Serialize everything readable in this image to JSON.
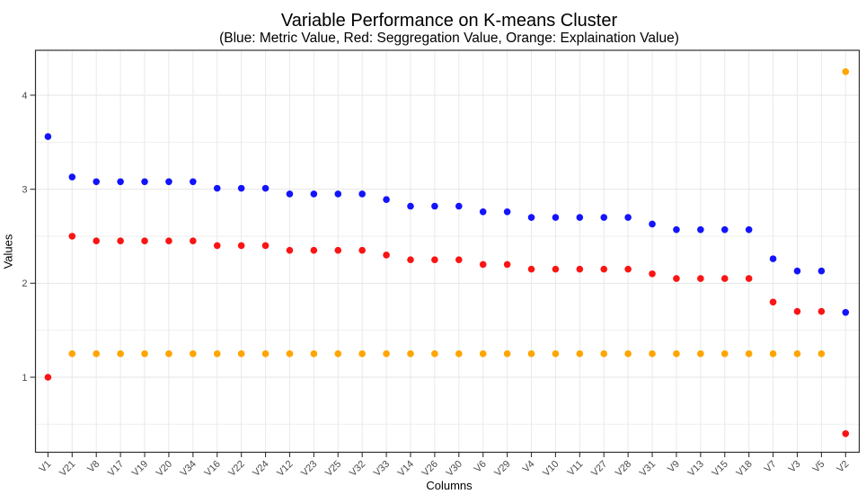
{
  "title": "Variable Performance on K-means Cluster",
  "subtitle": "(Blue: Metric Value, Red: Seggregation Value, Orange: Explaination Value)",
  "chart_data": {
    "type": "scatter",
    "title": "Variable Performance on K-means Cluster",
    "subtitle": "(Blue: Metric Value, Red: Seggregation Value, Orange: Explaination Value)",
    "xlabel": "Columns",
    "ylabel": "Values",
    "categories": [
      "V1",
      "V21",
      "V8",
      "V17",
      "V19",
      "V20",
      "V34",
      "V16",
      "V22",
      "V24",
      "V12",
      "V23",
      "V25",
      "V32",
      "V33",
      "V14",
      "V26",
      "V30",
      "V6",
      "V29",
      "V4",
      "V10",
      "V11",
      "V27",
      "V28",
      "V31",
      "V9",
      "V13",
      "V15",
      "V18",
      "V7",
      "V3",
      "V5",
      "V2"
    ],
    "series": [
      {
        "name": "Metric Value",
        "color": "#1414fa",
        "values": [
          3.56,
          3.13,
          3.08,
          3.08,
          3.08,
          3.08,
          3.08,
          3.01,
          3.01,
          3.01,
          2.95,
          2.95,
          2.95,
          2.95,
          2.89,
          2.82,
          2.82,
          2.82,
          2.76,
          2.76,
          2.7,
          2.7,
          2.7,
          2.7,
          2.7,
          2.63,
          2.57,
          2.57,
          2.57,
          2.57,
          2.26,
          2.13,
          2.13,
          1.69
        ]
      },
      {
        "name": "Seggregation Value",
        "color": "#fa1414",
        "values": [
          1.0,
          2.5,
          2.45,
          2.45,
          2.45,
          2.45,
          2.45,
          2.4,
          2.4,
          2.4,
          2.35,
          2.35,
          2.35,
          2.35,
          2.3,
          2.25,
          2.25,
          2.25,
          2.2,
          2.2,
          2.15,
          2.15,
          2.15,
          2.15,
          2.15,
          2.1,
          2.05,
          2.05,
          2.05,
          2.05,
          1.8,
          1.7,
          1.7,
          0.4
        ]
      },
      {
        "name": "Explaination Value",
        "color": "#ffa500",
        "values": [
          null,
          1.25,
          1.25,
          1.25,
          1.25,
          1.25,
          1.25,
          1.25,
          1.25,
          1.25,
          1.25,
          1.25,
          1.25,
          1.25,
          1.25,
          1.25,
          1.25,
          1.25,
          1.25,
          1.25,
          1.25,
          1.25,
          1.25,
          1.25,
          1.25,
          1.25,
          1.25,
          1.25,
          1.25,
          1.25,
          1.25,
          1.25,
          1.25,
          4.25
        ]
      }
    ],
    "yticks": [
      1,
      2,
      3,
      4
    ],
    "y_minor_gridlines": [
      0.5,
      1.5,
      2.5,
      3.5
    ],
    "ylim": [
      0.2,
      4.48
    ],
    "grid": true,
    "legend": "none (series identified in subtitle)"
  },
  "style": {
    "panel_border": "#2e2e2e",
    "grid_major": "#e4e4e4",
    "grid_minor": "#efefef",
    "grid_vertical": "#e9e9e9",
    "tick_color": "#333333",
    "tick_label_color": "#4a4a4a"
  }
}
